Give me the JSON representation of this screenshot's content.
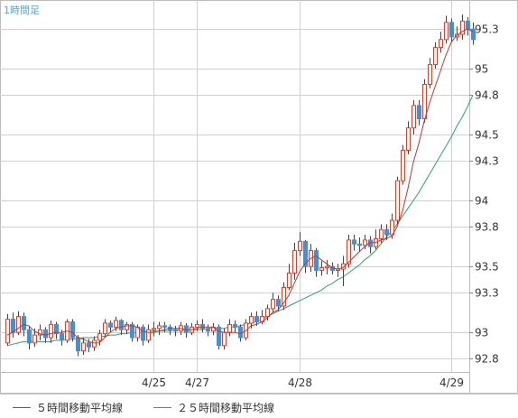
{
  "timeframe_label": "1時間足",
  "legend": [
    {
      "label": "５時間移動平均線",
      "color": "#b03a3a"
    },
    {
      "label": "２５時間移動平均線",
      "color": "#2aa36b"
    }
  ],
  "colors": {
    "up_candle": "#c9472f",
    "down_candle": "#4a8fcc",
    "wick": "#444444",
    "grid": "#d0d0d0",
    "frame": "#bdbdbd"
  },
  "chart_data": {
    "type": "candlestick",
    "title": "",
    "ylim": [
      92.7,
      95.52
    ],
    "y_ticks": [
      {
        "value": 92.8,
        "label": "92.8"
      },
      {
        "value": 93,
        "label": "93"
      },
      {
        "value": 93.3,
        "label": "93.3"
      },
      {
        "value": 93.5,
        "label": "93.5"
      },
      {
        "value": 93.8,
        "label": "93.8"
      },
      {
        "value": 94,
        "label": "94"
      },
      {
        "value": 94.3,
        "label": "94.3"
      },
      {
        "value": 94.5,
        "label": "94.5"
      },
      {
        "value": 94.8,
        "label": "94.8"
      },
      {
        "value": 95,
        "label": "95"
      },
      {
        "value": 95.3,
        "label": "95.3"
      }
    ],
    "x_ticks": [
      {
        "index": 27,
        "label": "4/25"
      },
      {
        "index": 35,
        "label": "4/27"
      },
      {
        "index": 54,
        "label": "4/28"
      },
      {
        "index": 82,
        "label": "4/29"
      }
    ],
    "candles": [
      [
        92.92,
        93.1,
        93.14,
        92.9
      ],
      [
        93.1,
        93.0,
        93.15,
        92.96
      ],
      [
        93.0,
        93.12,
        93.16,
        92.98
      ],
      [
        93.12,
        93.02,
        93.15,
        92.97
      ],
      [
        93.02,
        92.92,
        93.05,
        92.87
      ],
      [
        92.92,
        92.98,
        93.03,
        92.89
      ],
      [
        92.98,
        93.02,
        93.06,
        92.94
      ],
      [
        93.02,
        92.96,
        93.04,
        92.92
      ],
      [
        92.96,
        93.06,
        93.09,
        92.92
      ],
      [
        93.06,
        92.99,
        93.08,
        92.95
      ],
      [
        92.99,
        92.94,
        93.02,
        92.9
      ],
      [
        92.94,
        93.08,
        93.1,
        92.92
      ],
      [
        93.08,
        92.96,
        93.1,
        92.93
      ],
      [
        92.96,
        92.86,
        92.98,
        92.82
      ],
      [
        92.86,
        92.92,
        92.96,
        92.83
      ],
      [
        92.92,
        92.89,
        92.95,
        92.85
      ],
      [
        92.89,
        92.94,
        92.97,
        92.86
      ],
      [
        92.94,
        92.99,
        93.02,
        92.9
      ],
      [
        92.99,
        93.07,
        93.1,
        92.96
      ],
      [
        93.07,
        93.04,
        93.09,
        93.0
      ],
      [
        93.04,
        93.09,
        93.12,
        93.01
      ],
      [
        93.09,
        93.02,
        93.1,
        92.98
      ],
      [
        93.02,
        93.06,
        93.08,
        92.99
      ],
      [
        93.06,
        92.96,
        93.08,
        92.93
      ],
      [
        92.96,
        93.04,
        93.06,
        92.93
      ],
      [
        93.04,
        92.94,
        93.06,
        92.9
      ],
      [
        92.94,
        93.02,
        93.06,
        92.92
      ],
      [
        93.02,
        93.03,
        93.08,
        92.97
      ],
      [
        93.03,
        93.05,
        93.08,
        92.98
      ],
      [
        93.05,
        93.04,
        93.08,
        93.0
      ],
      [
        93.04,
        93.02,
        93.06,
        92.98
      ],
      [
        93.02,
        93.01,
        93.05,
        92.97
      ],
      [
        93.01,
        93.05,
        93.08,
        92.98
      ],
      [
        93.05,
        93.0,
        93.07,
        92.96
      ],
      [
        93.0,
        93.04,
        93.07,
        92.98
      ],
      [
        93.04,
        93.06,
        93.09,
        93.01
      ],
      [
        93.06,
        93.03,
        93.1,
        93.0
      ],
      [
        93.03,
        93.01,
        93.06,
        92.97
      ],
      [
        93.01,
        93.04,
        93.07,
        92.98
      ],
      [
        93.04,
        92.9,
        93.06,
        92.87
      ],
      [
        92.9,
        93.0,
        93.03,
        92.87
      ],
      [
        93.0,
        93.06,
        93.1,
        92.97
      ],
      [
        93.06,
        93.04,
        93.09,
        93.0
      ],
      [
        93.04,
        92.96,
        93.06,
        92.93
      ],
      [
        92.96,
        93.07,
        93.1,
        92.94
      ],
      [
        93.07,
        93.12,
        93.15,
        93.03
      ],
      [
        93.12,
        93.08,
        93.16,
        93.05
      ],
      [
        93.08,
        93.12,
        93.17,
        93.06
      ],
      [
        93.12,
        93.18,
        93.21,
        93.09
      ],
      [
        93.18,
        93.25,
        93.3,
        93.15
      ],
      [
        93.25,
        93.2,
        93.28,
        93.16
      ],
      [
        93.2,
        93.34,
        93.38,
        93.17
      ],
      [
        93.34,
        93.45,
        93.52,
        93.32
      ],
      [
        93.45,
        93.62,
        93.68,
        93.4
      ],
      [
        93.62,
        93.69,
        93.76,
        93.58
      ],
      [
        93.69,
        93.5,
        93.7,
        93.45
      ],
      [
        93.5,
        93.62,
        93.67,
        93.46
      ],
      [
        93.62,
        93.47,
        93.64,
        93.42
      ],
      [
        93.47,
        93.49,
        93.54,
        93.43
      ],
      [
        93.49,
        93.5,
        93.55,
        93.44
      ],
      [
        93.5,
        93.47,
        93.53,
        93.44
      ],
      [
        93.47,
        93.48,
        93.52,
        93.42
      ],
      [
        93.48,
        93.52,
        93.58,
        93.35
      ],
      [
        93.52,
        93.7,
        93.74,
        93.49
      ],
      [
        93.7,
        93.67,
        93.74,
        93.62
      ],
      [
        93.67,
        93.66,
        93.72,
        93.61
      ],
      [
        93.66,
        93.7,
        93.74,
        93.63
      ],
      [
        93.7,
        93.65,
        93.73,
        93.6
      ],
      [
        93.65,
        93.71,
        93.78,
        93.63
      ],
      [
        93.71,
        93.78,
        93.82,
        93.68
      ],
      [
        93.78,
        93.74,
        93.82,
        93.7
      ],
      [
        93.74,
        93.85,
        93.9,
        93.71
      ],
      [
        93.85,
        94.15,
        94.18,
        93.82
      ],
      [
        94.15,
        94.38,
        94.42,
        94.12
      ],
      [
        94.38,
        94.55,
        94.6,
        94.35
      ],
      [
        94.55,
        94.72,
        94.76,
        94.5
      ],
      [
        94.72,
        94.62,
        94.76,
        94.57
      ],
      [
        94.62,
        94.88,
        94.92,
        94.59
      ],
      [
        94.88,
        95.03,
        95.08,
        94.85
      ],
      [
        95.03,
        95.16,
        95.2,
        95.0
      ],
      [
        95.16,
        95.22,
        95.28,
        95.12
      ],
      [
        95.22,
        95.35,
        95.4,
        95.19
      ],
      [
        95.35,
        95.24,
        95.38,
        95.2
      ],
      [
        95.24,
        95.26,
        95.32,
        95.21
      ],
      [
        95.26,
        95.36,
        95.41,
        95.22
      ],
      [
        95.36,
        95.3,
        95.39,
        95.25
      ],
      [
        95.3,
        95.22,
        95.35,
        95.18
      ]
    ],
    "ma5": [
      92.98,
      93.0,
      93.03,
      93.06,
      93.05,
      93.01,
      92.99,
      92.98,
      92.99,
      93.0,
      93.0,
      93.01,
      93.0,
      92.96,
      92.95,
      92.93,
      92.92,
      92.92,
      92.96,
      93.0,
      93.03,
      93.04,
      93.05,
      93.05,
      93.04,
      93.01,
      93.0,
      93.0,
      93.01,
      93.02,
      93.03,
      93.03,
      93.03,
      93.02,
      93.02,
      93.03,
      93.04,
      93.04,
      93.04,
      93.01,
      93.0,
      93.0,
      93.0,
      92.99,
      93.01,
      93.05,
      93.06,
      93.08,
      93.11,
      93.15,
      93.17,
      93.22,
      93.28,
      93.37,
      93.46,
      93.52,
      93.56,
      93.58,
      93.55,
      93.52,
      93.49,
      93.48,
      93.49,
      93.53,
      93.57,
      93.61,
      93.65,
      93.68,
      93.68,
      93.7,
      93.71,
      93.73,
      93.8,
      93.92,
      94.09,
      94.29,
      94.43,
      94.6,
      94.74,
      94.86,
      94.98,
      95.1,
      95.2,
      95.25,
      95.28,
      95.3,
      95.28
    ],
    "ma25": [
      92.9,
      92.91,
      92.92,
      92.93,
      92.93,
      92.93,
      92.93,
      92.93,
      92.93,
      92.94,
      92.94,
      92.95,
      92.95,
      92.95,
      92.96,
      92.96,
      92.96,
      92.97,
      92.97,
      92.98,
      92.98,
      92.99,
      92.99,
      93.0,
      93.0,
      93.0,
      93.01,
      93.01,
      93.01,
      93.01,
      93.01,
      93.02,
      93.02,
      93.02,
      93.02,
      93.02,
      93.02,
      93.03,
      93.03,
      93.03,
      93.03,
      93.04,
      93.04,
      93.05,
      93.06,
      93.07,
      93.08,
      93.1,
      93.12,
      93.14,
      93.16,
      93.18,
      93.2,
      93.22,
      93.24,
      93.26,
      93.28,
      93.3,
      93.32,
      93.35,
      93.37,
      93.4,
      93.42,
      93.45,
      93.48,
      93.51,
      93.55,
      93.58,
      93.62,
      93.67,
      93.72,
      93.77,
      93.82,
      93.88,
      93.94,
      94.0,
      94.06,
      94.13,
      94.2,
      94.27,
      94.34,
      94.41,
      94.48,
      94.56,
      94.63,
      94.71,
      94.8
    ]
  }
}
